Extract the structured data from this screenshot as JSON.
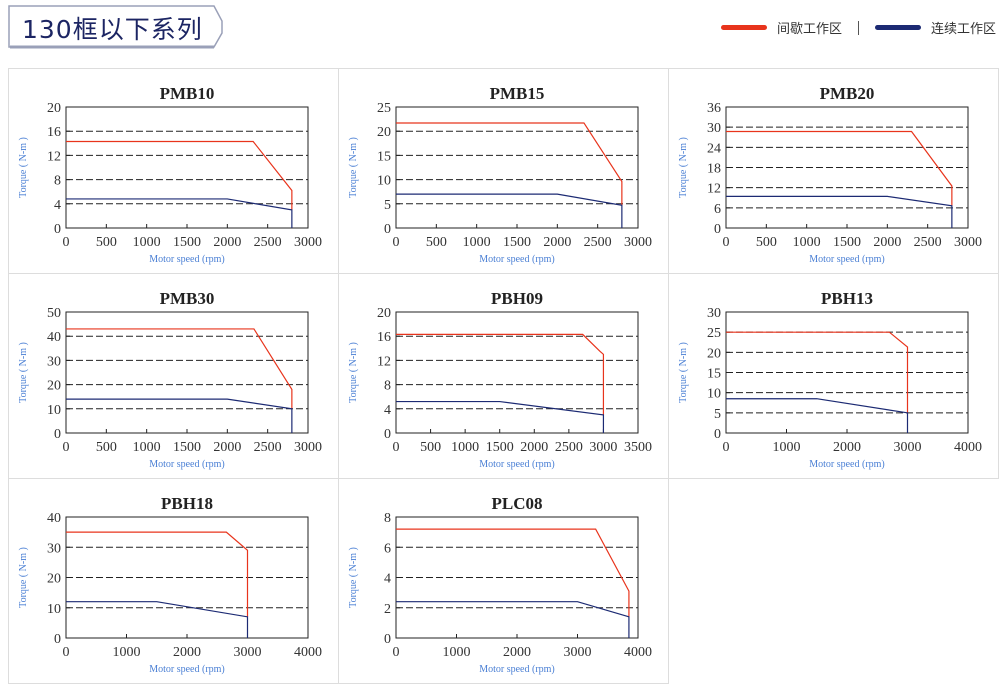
{
  "header": {
    "title": "130框以下系列"
  },
  "legend": [
    {
      "label": "间歇工作区",
      "color": "#e8341c"
    },
    {
      "label": "连续工作区",
      "color": "#1c2a73"
    }
  ],
  "colors": {
    "intermittent": "#e8341c",
    "continuous": "#1c2a73",
    "axis_label": "#4a7fd4"
  },
  "chart_data": [
    {
      "type": "line",
      "title": "PMB10",
      "xlabel": "Motor speed (rpm)",
      "ylabel": "Torque ( N-m )",
      "xlim": [
        0,
        3000
      ],
      "ylim": [
        0,
        20
      ],
      "xticks": [
        0,
        500,
        1000,
        1500,
        2000,
        2500,
        3000
      ],
      "yticks": [
        0,
        4,
        8,
        12,
        16,
        20
      ],
      "grid": "dashed horizontal",
      "series": [
        {
          "name": "间歇工作区",
          "points": [
            [
              0,
              14.3
            ],
            [
              2320,
              14.3
            ],
            [
              2800,
              6.2
            ],
            [
              2800,
              3
            ]
          ]
        },
        {
          "name": "连续工作区",
          "points": [
            [
              0,
              4.8
            ],
            [
              2000,
              4.8
            ],
            [
              2800,
              3
            ],
            [
              2800,
              0
            ]
          ]
        }
      ]
    },
    {
      "type": "line",
      "title": "PMB15",
      "xlabel": "Motor speed (rpm)",
      "ylabel": "Torque ( N-m )",
      "xlim": [
        0,
        3000
      ],
      "ylim": [
        0,
        25
      ],
      "xticks": [
        0,
        500,
        1000,
        1500,
        2000,
        2500,
        3000
      ],
      "yticks": [
        0,
        5,
        10,
        15,
        20,
        25
      ],
      "grid": "dashed horizontal",
      "series": [
        {
          "name": "间歇工作区",
          "points": [
            [
              0,
              21.7
            ],
            [
              2330,
              21.7
            ],
            [
              2800,
              9.6
            ],
            [
              2800,
              4.7
            ]
          ]
        },
        {
          "name": "连续工作区",
          "points": [
            [
              0,
              7
            ],
            [
              2000,
              7
            ],
            [
              2800,
              4.7
            ],
            [
              2800,
              0
            ]
          ]
        }
      ]
    },
    {
      "type": "line",
      "title": "PMB20",
      "xlabel": "Motor speed (rpm)",
      "ylabel": "Torque ( N-m )",
      "xlim": [
        0,
        3000
      ],
      "ylim": [
        0,
        36
      ],
      "xticks": [
        0,
        500,
        1000,
        1500,
        2000,
        2500,
        3000
      ],
      "yticks": [
        0,
        6,
        12,
        18,
        24,
        30,
        36
      ],
      "grid": "dashed horizontal",
      "series": [
        {
          "name": "间歇工作区",
          "points": [
            [
              0,
              28.7
            ],
            [
              2300,
              28.7
            ],
            [
              2800,
              12.5
            ],
            [
              2800,
              6.6
            ]
          ]
        },
        {
          "name": "连续工作区",
          "points": [
            [
              0,
              9.4
            ],
            [
              2000,
              9.4
            ],
            [
              2800,
              6.6
            ],
            [
              2800,
              0
            ]
          ]
        }
      ]
    },
    {
      "type": "line",
      "title": "PMB30",
      "xlabel": "Motor speed (rpm)",
      "ylabel": "Torque ( N-m )",
      "xlim": [
        0,
        3000
      ],
      "ylim": [
        0,
        50
      ],
      "xticks": [
        0,
        500,
        1000,
        1500,
        2000,
        2500,
        3000
      ],
      "yticks": [
        0,
        10,
        20,
        30,
        40,
        50
      ],
      "grid": "dashed horizontal",
      "series": [
        {
          "name": "间歇工作区",
          "points": [
            [
              0,
              43
            ],
            [
              2330,
              43
            ],
            [
              2800,
              18
            ],
            [
              2800,
              10
            ]
          ]
        },
        {
          "name": "连续工作区",
          "points": [
            [
              0,
              14
            ],
            [
              2000,
              14
            ],
            [
              2800,
              10
            ],
            [
              2800,
              0
            ]
          ]
        }
      ]
    },
    {
      "type": "line",
      "title": "PBH09",
      "xlabel": "Motor speed (rpm)",
      "ylabel": "Torque ( N-m )",
      "xlim": [
        0,
        3500
      ],
      "ylim": [
        0,
        20
      ],
      "xticks": [
        0,
        500,
        1000,
        1500,
        2000,
        2500,
        3000,
        3500
      ],
      "yticks": [
        0,
        4,
        8,
        12,
        16,
        20
      ],
      "grid": "dashed horizontal",
      "series": [
        {
          "name": "间歇工作区",
          "points": [
            [
              0,
              16.3
            ],
            [
              2700,
              16.3
            ],
            [
              2950,
              13.5
            ],
            [
              3000,
              13
            ],
            [
              3000,
              3
            ]
          ]
        },
        {
          "name": "连续工作区",
          "points": [
            [
              0,
              5.2
            ],
            [
              1500,
              5.2
            ],
            [
              3000,
              3
            ],
            [
              3000,
              0
            ]
          ]
        }
      ]
    },
    {
      "type": "line",
      "title": "PBH13",
      "xlabel": "Motor speed (rpm)",
      "ylabel": "Torque ( N-m )",
      "xlim": [
        0,
        4000
      ],
      "ylim": [
        0,
        30
      ],
      "xticks": [
        0,
        1000,
        2000,
        3000,
        4000
      ],
      "yticks": [
        0,
        5,
        10,
        15,
        20,
        25,
        30
      ],
      "grid": "dashed horizontal",
      "series": [
        {
          "name": "间歇工作区",
          "points": [
            [
              0,
              25
            ],
            [
              2700,
              25
            ],
            [
              3000,
              21.3
            ],
            [
              3000,
              5
            ]
          ]
        },
        {
          "name": "连续工作区",
          "points": [
            [
              0,
              8.5
            ],
            [
              1500,
              8.5
            ],
            [
              3000,
              5
            ],
            [
              3000,
              0
            ]
          ]
        }
      ]
    },
    {
      "type": "line",
      "title": "PBH18",
      "xlabel": "Motor speed (rpm)",
      "ylabel": "Torque ( N-m )",
      "xlim": [
        0,
        4000
      ],
      "ylim": [
        0,
        40
      ],
      "xticks": [
        0,
        1000,
        2000,
        3000,
        4000
      ],
      "yticks": [
        0,
        10,
        20,
        30,
        40
      ],
      "grid": "dashed horizontal",
      "series": [
        {
          "name": "间歇工作区",
          "points": [
            [
              0,
              35
            ],
            [
              2650,
              35
            ],
            [
              3000,
              29
            ],
            [
              3000,
              7
            ]
          ]
        },
        {
          "name": "连续工作区",
          "points": [
            [
              0,
              12
            ],
            [
              1500,
              12
            ],
            [
              3000,
              7
            ],
            [
              3000,
              0
            ]
          ]
        }
      ]
    },
    {
      "type": "line",
      "title": "PLC08",
      "xlabel": "Motor speed (rpm)",
      "ylabel": "Torque ( N-m )",
      "xlim": [
        0,
        4000
      ],
      "ylim": [
        0,
        8
      ],
      "xticks": [
        0,
        1000,
        2000,
        3000,
        4000
      ],
      "yticks": [
        0,
        2,
        4,
        6,
        8
      ],
      "grid": "dashed horizontal",
      "series": [
        {
          "name": "间歇工作区",
          "points": [
            [
              0,
              7.2
            ],
            [
              3300,
              7.2
            ],
            [
              3850,
              3.1
            ],
            [
              3850,
              1.4
            ]
          ]
        },
        {
          "name": "连续工作区",
          "points": [
            [
              0,
              2.4
            ],
            [
              3000,
              2.4
            ],
            [
              3850,
              1.4
            ],
            [
              3850,
              0
            ]
          ]
        }
      ]
    }
  ]
}
